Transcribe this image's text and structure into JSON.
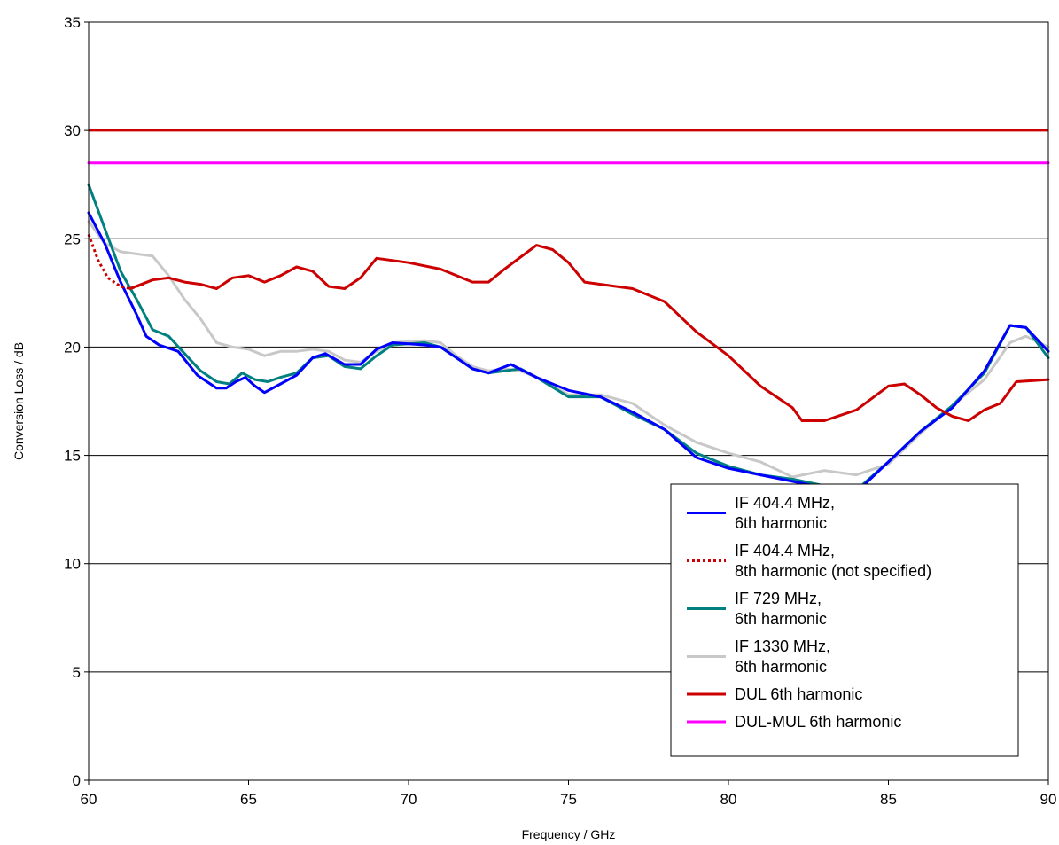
{
  "chart_data": {
    "type": "line",
    "xlabel": "Frequency / GHz",
    "ylabel": "Conversion Loss / dB",
    "xlim": [
      60,
      90
    ],
    "ylim": [
      0,
      35
    ],
    "x_ticks": [
      "60",
      "65",
      "70",
      "75",
      "80",
      "85",
      "90"
    ],
    "y_ticks": [
      "0",
      "5",
      "10",
      "15",
      "20",
      "25",
      "30",
      "35"
    ],
    "grid": "horizontal",
    "legend_position": "bottom-right",
    "series": [
      {
        "name": "IF 404.4 MHz, 6th harmonic",
        "legend_lines": [
          "IF 404.4 MHz,",
          "6th harmonic"
        ],
        "color": "#0000ff",
        "dash": "solid",
        "points": [
          [
            60,
            26.2
          ],
          [
            60.5,
            24.8
          ],
          [
            61,
            23.0
          ],
          [
            61.5,
            21.5
          ],
          [
            61.8,
            20.5
          ],
          [
            62.2,
            20.1
          ],
          [
            62.8,
            19.8
          ],
          [
            63.4,
            18.7
          ],
          [
            64,
            18.1
          ],
          [
            64.3,
            18.1
          ],
          [
            64.6,
            18.4
          ],
          [
            64.9,
            18.6
          ],
          [
            65.2,
            18.2
          ],
          [
            65.5,
            17.9
          ],
          [
            66,
            18.3
          ],
          [
            66.5,
            18.7
          ],
          [
            67,
            19.5
          ],
          [
            67.4,
            19.7
          ],
          [
            68,
            19.2
          ],
          [
            68.5,
            19.2
          ],
          [
            69,
            19.9
          ],
          [
            69.5,
            20.2
          ],
          [
            70.5,
            20.1
          ],
          [
            71,
            20.0
          ],
          [
            71.5,
            19.5
          ],
          [
            72,
            19.0
          ],
          [
            72.5,
            18.8
          ],
          [
            73.2,
            19.2
          ],
          [
            74,
            18.6
          ],
          [
            75,
            18.0
          ],
          [
            76,
            17.7
          ],
          [
            77,
            17.0
          ],
          [
            78,
            16.2
          ],
          [
            79,
            14.9
          ],
          [
            80,
            14.4
          ],
          [
            81,
            14.1
          ],
          [
            82,
            13.8
          ],
          [
            83,
            13.5
          ],
          [
            84,
            13.3
          ],
          [
            85,
            14.7
          ],
          [
            86,
            16.1
          ],
          [
            87,
            17.2
          ],
          [
            88,
            18.9
          ],
          [
            88.8,
            21.0
          ],
          [
            89.3,
            20.9
          ],
          [
            90,
            19.8
          ]
        ]
      },
      {
        "name": "IF 404.4 MHz, 8th harmonic (not specified)",
        "legend_lines": [
          "IF 404.4 MHz,",
          "8th harmonic (not specified)"
        ],
        "color": "#cc0000",
        "dash": "dotted",
        "points": [
          [
            60,
            25.2
          ],
          [
            60.3,
            24.0
          ],
          [
            60.6,
            23.2
          ],
          [
            61,
            22.8
          ],
          [
            61.3,
            22.7
          ],
          [
            61.7,
            22.9
          ]
        ]
      },
      {
        "name": "IF 729 MHz, 6th harmonic",
        "legend_lines": [
          "IF 729 MHz,",
          "6th harmonic"
        ],
        "color": "#008080",
        "dash": "solid",
        "points": [
          [
            60,
            27.5
          ],
          [
            60.5,
            25.5
          ],
          [
            61,
            23.5
          ],
          [
            61.5,
            22.2
          ],
          [
            62,
            20.8
          ],
          [
            62.5,
            20.5
          ],
          [
            63,
            19.7
          ],
          [
            63.5,
            18.9
          ],
          [
            64,
            18.4
          ],
          [
            64.4,
            18.3
          ],
          [
            64.8,
            18.8
          ],
          [
            65.2,
            18.5
          ],
          [
            65.6,
            18.4
          ],
          [
            66,
            18.6
          ],
          [
            66.5,
            18.8
          ],
          [
            67,
            19.5
          ],
          [
            67.5,
            19.6
          ],
          [
            68,
            19.1
          ],
          [
            68.5,
            19.0
          ],
          [
            69,
            19.6
          ],
          [
            69.5,
            20.1
          ],
          [
            70.5,
            20.2
          ],
          [
            71,
            20.0
          ],
          [
            71.5,
            19.5
          ],
          [
            72,
            19.0
          ],
          [
            72.5,
            18.8
          ],
          [
            73,
            18.9
          ],
          [
            73.5,
            19.0
          ],
          [
            74,
            18.6
          ],
          [
            75,
            17.7
          ],
          [
            76,
            17.7
          ],
          [
            77,
            16.9
          ],
          [
            78,
            16.2
          ],
          [
            79,
            15.1
          ],
          [
            80,
            14.5
          ],
          [
            81,
            14.1
          ],
          [
            82,
            13.9
          ],
          [
            83,
            13.6
          ],
          [
            84,
            13.4
          ],
          [
            85,
            14.7
          ],
          [
            86,
            16.1
          ],
          [
            87,
            17.3
          ],
          [
            88,
            18.8
          ],
          [
            88.8,
            21.0
          ],
          [
            89.3,
            20.9
          ],
          [
            90,
            19.5
          ]
        ]
      },
      {
        "name": "IF 1330 MHz, 6th harmonic",
        "legend_lines": [
          "IF 1330 MHz,",
          "6th harmonic"
        ],
        "color": "#c8c8c8",
        "dash": "solid",
        "points": [
          [
            60,
            25.8
          ],
          [
            60.5,
            24.8
          ],
          [
            61,
            24.4
          ],
          [
            61.5,
            24.3
          ],
          [
            62,
            24.2
          ],
          [
            62.5,
            23.3
          ],
          [
            63,
            22.2
          ],
          [
            63.5,
            21.3
          ],
          [
            64,
            20.2
          ],
          [
            64.5,
            20.0
          ],
          [
            65,
            19.9
          ],
          [
            65.5,
            19.6
          ],
          [
            66,
            19.8
          ],
          [
            66.5,
            19.8
          ],
          [
            67,
            19.9
          ],
          [
            67.5,
            19.8
          ],
          [
            68,
            19.4
          ],
          [
            68.5,
            19.3
          ],
          [
            69,
            19.8
          ],
          [
            69.5,
            20.2
          ],
          [
            70.5,
            20.3
          ],
          [
            71,
            20.2
          ],
          [
            71.5,
            19.6
          ],
          [
            72,
            19.1
          ],
          [
            72.5,
            18.9
          ],
          [
            73,
            19.0
          ],
          [
            73.5,
            18.9
          ],
          [
            74,
            18.6
          ],
          [
            75,
            17.8
          ],
          [
            76,
            17.8
          ],
          [
            77,
            17.4
          ],
          [
            78,
            16.4
          ],
          [
            79,
            15.6
          ],
          [
            80,
            15.1
          ],
          [
            81,
            14.7
          ],
          [
            82,
            14.0
          ],
          [
            83,
            14.3
          ],
          [
            84,
            14.1
          ],
          [
            85,
            14.6
          ],
          [
            86,
            16.0
          ],
          [
            87,
            17.3
          ],
          [
            88,
            18.5
          ],
          [
            88.8,
            20.2
          ],
          [
            89.3,
            20.5
          ],
          [
            90,
            20.0
          ]
        ]
      },
      {
        "name": "DUL 6th harmonic",
        "legend_lines": [
          "DUL 6th harmonic"
        ],
        "color": "#cc0000",
        "dash": "solid",
        "points": [
          [
            61.3,
            22.7
          ],
          [
            62,
            23.1
          ],
          [
            62.5,
            23.2
          ],
          [
            63,
            23.0
          ],
          [
            63.5,
            22.9
          ],
          [
            64,
            22.7
          ],
          [
            64.5,
            23.2
          ],
          [
            65,
            23.3
          ],
          [
            65.5,
            23.0
          ],
          [
            66,
            23.3
          ],
          [
            66.5,
            23.7
          ],
          [
            67,
            23.5
          ],
          [
            67.5,
            22.8
          ],
          [
            68,
            22.7
          ],
          [
            68.5,
            23.2
          ],
          [
            69,
            24.1
          ],
          [
            70,
            23.9
          ],
          [
            71,
            23.6
          ],
          [
            72,
            23.0
          ],
          [
            72.5,
            23.0
          ],
          [
            73,
            23.6
          ],
          [
            74,
            24.7
          ],
          [
            74.5,
            24.5
          ],
          [
            75,
            23.9
          ],
          [
            75.5,
            23.0
          ],
          [
            76,
            22.9
          ],
          [
            77,
            22.7
          ],
          [
            78,
            22.1
          ],
          [
            79,
            20.7
          ],
          [
            80,
            19.6
          ],
          [
            81,
            18.2
          ],
          [
            82,
            17.2
          ],
          [
            82.3,
            16.6
          ],
          [
            83,
            16.6
          ],
          [
            84,
            17.1
          ],
          [
            85,
            18.2
          ],
          [
            85.5,
            18.3
          ],
          [
            86,
            17.8
          ],
          [
            86.5,
            17.2
          ],
          [
            87,
            16.8
          ],
          [
            87.5,
            16.6
          ],
          [
            88,
            17.1
          ],
          [
            88.5,
            17.4
          ],
          [
            89,
            18.4
          ],
          [
            90,
            18.5
          ]
        ]
      },
      {
        "name": "DUL-MUL 6th harmonic",
        "legend_lines": [
          "DUL-MUL 6th harmonic"
        ],
        "color": "#ff00ff",
        "dash": "solid",
        "points": [
          [
            60,
            28.5
          ],
          [
            90,
            28.5
          ]
        ]
      }
    ],
    "reference_lines": [
      {
        "y": 30,
        "color": "#cc0000"
      }
    ]
  }
}
